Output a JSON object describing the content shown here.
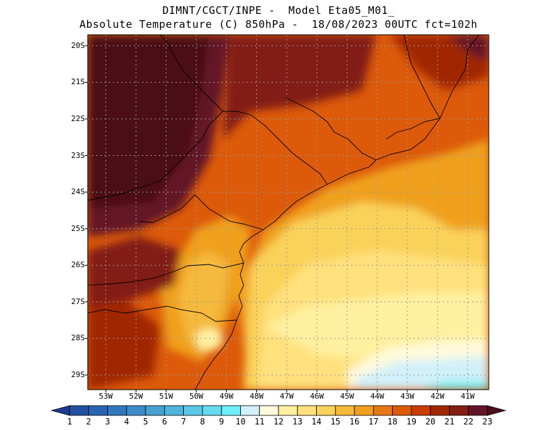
{
  "header": {
    "line1": "DIMNT/CGCT/INPE -  Model Eta05_M01_",
    "line2": "Absolute Temperature (C) 850hPa -  18/08/2023 00UTC fct=102h"
  },
  "map": {
    "lat_labels": [
      "20S",
      "21S",
      "22S",
      "23S",
      "24S",
      "25S",
      "26S",
      "27S",
      "28S",
      "29S"
    ],
    "lat_values": [
      -20,
      -21,
      -22,
      -23,
      -24,
      -25,
      -26,
      -27,
      -28,
      -29
    ],
    "lon_labels": [
      "53W",
      "52W",
      "51W",
      "50W",
      "49W",
      "48W",
      "47W",
      "46W",
      "45W",
      "44W",
      "43W",
      "42W",
      "41W"
    ],
    "lon_values": [
      -53,
      -52,
      -51,
      -50,
      -49,
      -48,
      -47,
      -46,
      -45,
      -44,
      -43,
      -42,
      -41
    ],
    "lat_range": [
      -29.4,
      -19.7
    ],
    "lon_range": [
      -53.6,
      -40.3
    ]
  },
  "colorbar": {
    "labels": [
      "1",
      "2",
      "3",
      "4",
      "5",
      "6",
      "7",
      "8",
      "9",
      "10",
      "11",
      "12",
      "13",
      "14",
      "15",
      "16",
      "17",
      "18",
      "19",
      "20",
      "21",
      "22",
      "23"
    ],
    "colors": [
      "#1e3c8c",
      "#2350a0",
      "#2864b4",
      "#3278be",
      "#3c8cc8",
      "#46a0d2",
      "#50b4dc",
      "#5ac8e6",
      "#64dcf0",
      "#6ef0fa",
      "#d2f0fa",
      "#fffadc",
      "#fff0a0",
      "#ffe17d",
      "#fad25a",
      "#f5b93c",
      "#f0a01e",
      "#e67814",
      "#dc5a0a",
      "#c83c00",
      "#a02800",
      "#821e14",
      "#641428",
      "#4b0f19"
    ]
  }
}
